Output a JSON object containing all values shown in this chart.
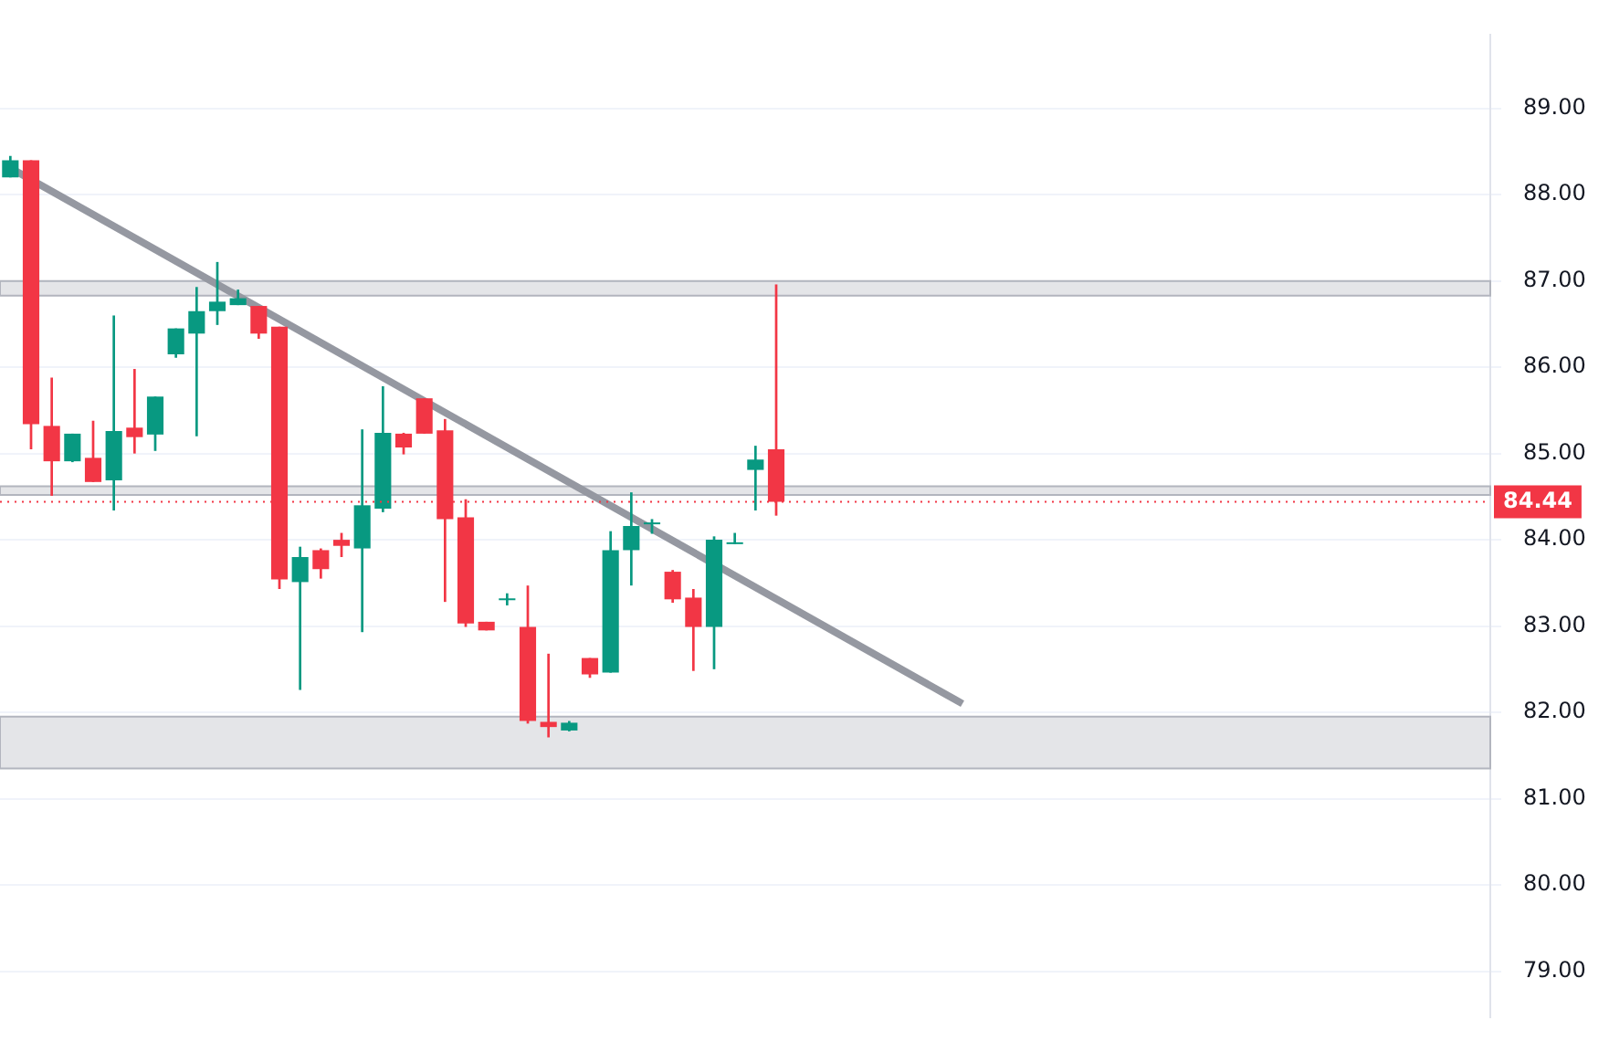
{
  "chart_data": {
    "type": "candlestick",
    "categories": [
      null,
      null,
      null,
      null,
      null,
      null,
      null,
      null,
      null,
      null,
      null,
      null,
      null,
      null,
      null,
      null,
      null,
      null,
      null,
      null,
      null,
      null,
      null,
      null,
      null,
      null,
      null,
      null,
      null,
      null,
      null,
      null,
      null,
      null,
      null,
      null,
      null,
      null,
      null,
      null,
      null,
      null,
      null,
      null,
      null,
      null,
      null,
      null,
      null,
      null,
      null,
      null,
      null,
      null,
      null,
      null,
      null,
      null,
      null,
      null,
      null,
      null,
      null,
      null,
      null,
      null,
      null,
      null,
      null,
      null,
      null,
      null
    ],
    "ohlc": [
      [
        88.2,
        88.45,
        88.2,
        88.4
      ],
      [
        88.4,
        88.4,
        85.05,
        85.34
      ],
      [
        85.32,
        85.88,
        84.51,
        84.91
      ],
      [
        84.91,
        85.23,
        84.9,
        85.23
      ],
      [
        84.95,
        85.38,
        84.67,
        84.67
      ],
      [
        84.69,
        86.6,
        84.34,
        85.26
      ],
      [
        85.3,
        85.98,
        85.0,
        85.19
      ],
      [
        85.22,
        85.66,
        85.03,
        85.66
      ],
      [
        86.15,
        86.45,
        86.11,
        86.45
      ],
      [
        86.39,
        86.93,
        85.2,
        86.65
      ],
      [
        86.65,
        87.22,
        86.49,
        86.76
      ],
      [
        86.72,
        86.9,
        86.72,
        86.8
      ],
      [
        86.71,
        86.71,
        86.33,
        86.39
      ],
      [
        86.47,
        86.47,
        83.43,
        83.54
      ],
      [
        83.51,
        83.92,
        82.26,
        83.8
      ],
      [
        83.88,
        83.9,
        83.55,
        83.66
      ],
      [
        84.0,
        84.08,
        83.8,
        83.93
      ],
      [
        83.9,
        85.28,
        82.93,
        84.4
      ],
      [
        84.36,
        85.78,
        84.32,
        85.24
      ],
      [
        85.23,
        85.24,
        84.99,
        85.07
      ],
      [
        85.64,
        85.64,
        85.23,
        85.23
      ],
      [
        85.27,
        85.4,
        83.28,
        84.24
      ],
      [
        84.26,
        84.47,
        82.99,
        83.03
      ],
      [
        83.05,
        83.05,
        82.95,
        82.95
      ],
      [
        83.3,
        83.38,
        83.24,
        83.32
      ],
      [
        82.99,
        83.47,
        81.87,
        81.9
      ],
      [
        81.89,
        82.68,
        81.71,
        81.83
      ],
      [
        81.79,
        81.9,
        81.78,
        81.88
      ],
      [
        82.63,
        82.63,
        82.4,
        82.44
      ],
      [
        82.46,
        84.1,
        82.46,
        83.88
      ],
      [
        83.88,
        84.55,
        83.47,
        84.16
      ],
      [
        84.18,
        84.24,
        84.07,
        84.18
      ],
      [
        83.63,
        83.65,
        83.27,
        83.31
      ],
      [
        83.33,
        83.43,
        82.48,
        82.99
      ],
      [
        82.99,
        84.04,
        82.5,
        84.0
      ],
      [
        83.95,
        84.08,
        83.95,
        83.96
      ],
      [
        84.81,
        85.09,
        84.34,
        84.93
      ],
      [
        85.05,
        86.96,
        84.28,
        84.44
      ],
      null,
      null,
      null,
      null,
      null,
      null,
      null,
      null,
      null,
      null,
      null,
      null,
      null,
      null,
      null,
      null,
      null,
      null,
      null,
      null,
      null,
      null,
      null,
      null,
      null,
      null,
      null,
      null,
      null,
      null,
      null,
      null,
      null,
      null
    ],
    "colors": [
      "#089981",
      "#f23645",
      "#f23645",
      "#089981",
      "#f23645",
      "#089981",
      "#f23645",
      "#089981",
      "#089981",
      "#089981",
      "#089981",
      "#089981",
      "#f23645",
      "#f23645",
      "#089981",
      "#f23645",
      "#f23645",
      "#089981",
      "#089981",
      "#f23645",
      "#f23645",
      "#f23645",
      "#f23645",
      "#f23645",
      "#089981",
      "#f23645",
      "#f23645",
      "#089981",
      "#f23645",
      "#089981",
      "#089981",
      "#089981",
      "#f23645",
      "#f23645",
      "#089981",
      "#089981",
      "#089981",
      "#f23645",
      null,
      null,
      null,
      null,
      null,
      null,
      null,
      null,
      null,
      null,
      null,
      null,
      null,
      null,
      null,
      null,
      null,
      null,
      null,
      null,
      null,
      null,
      null,
      null,
      null,
      null,
      null,
      null,
      null,
      null,
      null,
      null,
      null,
      null
    ],
    "series": [
      {
        "type": "line",
        "color": "#9598a1",
        "values": [
          88.31,
          null,
          null,
          null,
          null,
          null,
          null,
          null,
          null,
          null,
          null,
          null,
          null,
          null,
          null,
          null,
          null,
          null,
          null,
          null,
          null,
          null,
          null,
          null,
          null,
          null,
          null,
          null,
          null,
          null,
          null,
          null,
          null,
          null,
          null,
          null,
          null,
          null,
          null,
          null,
          null,
          null,
          null,
          null,
          null,
          null,
          82.1,
          null,
          null,
          null,
          null,
          null,
          null,
          null,
          null,
          null,
          null,
          null,
          null,
          null,
          null,
          null,
          null,
          null,
          null,
          null,
          null,
          null,
          null,
          null,
          null,
          null
        ]
      }
    ],
    "ylim": [
      78.47,
      89.85
    ],
    "yticks": [
      {
        "value": 79,
        "label": "79.00"
      },
      {
        "value": 80,
        "label": "80.00"
      },
      {
        "value": 81,
        "label": "81.00"
      },
      {
        "value": 82,
        "label": "82.00"
      },
      {
        "value": 83,
        "label": "83.00"
      },
      {
        "value": 84,
        "label": "84.00"
      },
      {
        "value": 85,
        "label": "85.00"
      },
      {
        "value": 86,
        "label": "86.00"
      },
      {
        "value": 87,
        "label": "87.00"
      },
      {
        "value": 88,
        "label": "88.00"
      },
      {
        "value": 89,
        "label": "89.00"
      }
    ],
    "bands": [
      {
        "axis": "y",
        "from": 86.83,
        "to": 87.0,
        "color": "#b2b5be"
      },
      {
        "axis": "y",
        "from": 84.52,
        "to": 84.62,
        "color": "#b2b5be"
      },
      {
        "axis": "y",
        "from": 81.35,
        "to": 81.95,
        "color": "#b2b5be"
      }
    ],
    "ref_lines": [
      {
        "axis": "y",
        "value": 84.44,
        "label": "84.44",
        "color": "#f23645",
        "line_style": "dotted"
      }
    ],
    "grid": "y",
    "tick_labels": "y",
    "legend": false
  }
}
